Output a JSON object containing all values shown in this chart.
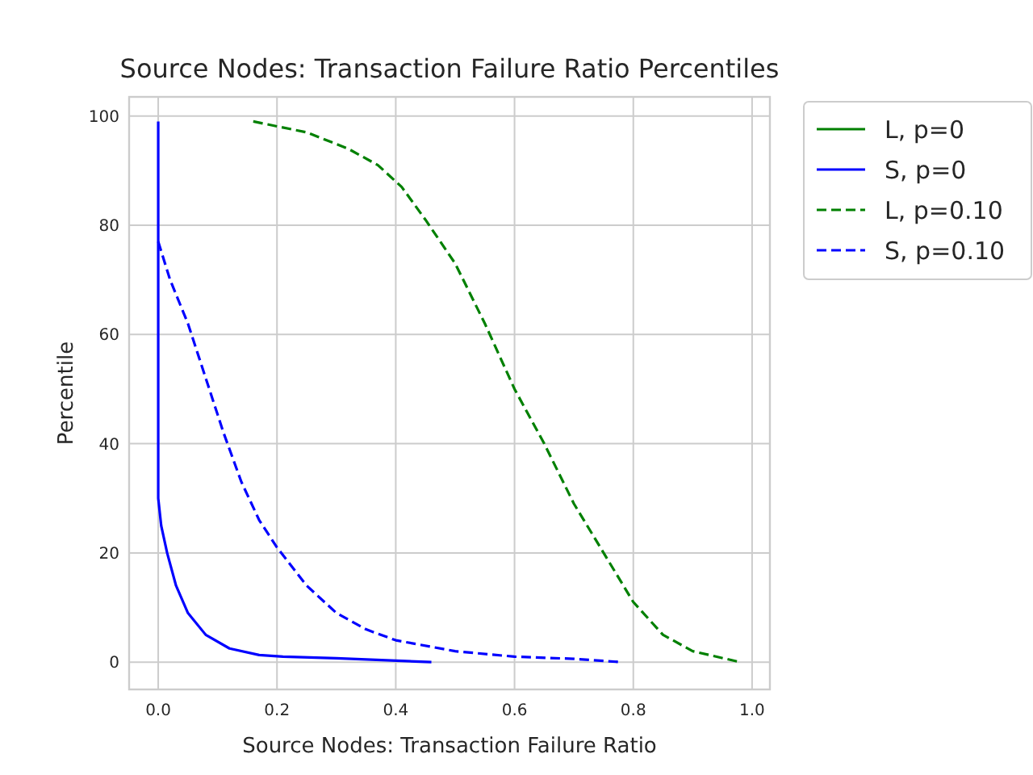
{
  "chart_data": {
    "type": "line",
    "title": "Source Nodes: Transaction Failure Ratio Percentiles",
    "xlabel": "Source Nodes: Transaction Failure Ratio",
    "ylabel": "Percentile",
    "xlim": [
      -0.049,
      1.03
    ],
    "ylim": [
      -5,
      103.5
    ],
    "xticks": [
      {
        "value": 0,
        "label": "0.0"
      },
      {
        "value": 0.2,
        "label": "0.2"
      },
      {
        "value": 0.4,
        "label": "0.4"
      },
      {
        "value": 0.6,
        "label": "0.6"
      },
      {
        "value": 0.8,
        "label": "0.8"
      },
      {
        "value": 1,
        "label": "1.0"
      }
    ],
    "yticks": [
      0,
      20,
      40,
      60,
      80,
      100
    ],
    "grid": true,
    "legend": "right",
    "series": [
      {
        "name": "L, p=0",
        "color": "#008000",
        "line_style": "solid"
      },
      {
        "name": "S, p=0",
        "color": "#0000ff",
        "line_style": "solid",
        "x": [
          0,
          0,
          0.005,
          0.015,
          0.03,
          0.05,
          0.08,
          0.12,
          0.17,
          0.21,
          0.3,
          0.46
        ],
        "values": [
          99,
          30,
          25,
          20,
          14,
          9,
          5,
          2.5,
          1.3,
          1,
          0.7,
          0
        ]
      },
      {
        "name": "L, p=0.10",
        "color": "#008000",
        "line_style": "dashed",
        "x": [
          0.16,
          0.25,
          0.32,
          0.37,
          0.41,
          0.45,
          0.5,
          0.55,
          0.6,
          0.65,
          0.7,
          0.75,
          0.8,
          0.85,
          0.9,
          0.98
        ],
        "values": [
          99,
          97,
          94,
          91,
          87,
          81,
          73,
          62,
          50,
          40,
          29,
          20,
          11,
          5,
          2,
          0
        ]
      },
      {
        "name": "S, p=0.10",
        "color": "#0000ff",
        "line_style": "dashed",
        "x": [
          0,
          0.02,
          0.05,
          0.08,
          0.11,
          0.14,
          0.17,
          0.2,
          0.25,
          0.3,
          0.35,
          0.4,
          0.5,
          0.6,
          0.7,
          0.78
        ],
        "values": [
          77,
          70,
          62,
          52,
          42,
          33,
          26,
          21,
          14,
          9,
          6,
          4,
          2,
          1,
          0.6,
          0
        ]
      }
    ]
  }
}
